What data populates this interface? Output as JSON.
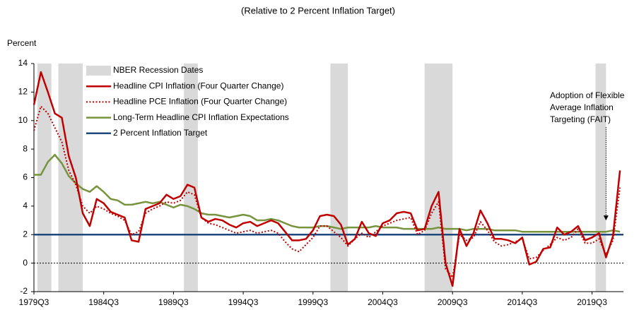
{
  "chart_data": {
    "type": "line",
    "subtitle": "(Relative to 2 Percent Inflation Target)",
    "y_label": "Percent",
    "x": [
      1979.5,
      1980.0,
      1980.5,
      1981.0,
      1981.5,
      1982.0,
      1982.5,
      1983.0,
      1983.5,
      1984.0,
      1984.5,
      1985.0,
      1985.5,
      1986.0,
      1986.5,
      1987.0,
      1987.5,
      1988.0,
      1988.5,
      1989.0,
      1989.5,
      1990.0,
      1990.5,
      1991.0,
      1991.5,
      1992.0,
      1992.5,
      1993.0,
      1993.5,
      1994.0,
      1994.5,
      1995.0,
      1995.5,
      1996.0,
      1996.5,
      1997.0,
      1997.5,
      1998.0,
      1998.5,
      1999.0,
      1999.5,
      2000.0,
      2000.5,
      2001.0,
      2001.5,
      2002.0,
      2002.5,
      2003.0,
      2003.5,
      2004.0,
      2004.5,
      2005.0,
      2005.5,
      2006.0,
      2006.5,
      2007.0,
      2007.5,
      2008.0,
      2008.5,
      2009.0,
      2009.5,
      2010.0,
      2010.5,
      2011.0,
      2011.5,
      2012.0,
      2012.5,
      2013.0,
      2013.5,
      2014.0,
      2014.5,
      2015.0,
      2015.5,
      2016.0,
      2016.5,
      2017.0,
      2017.5,
      2018.0,
      2018.5,
      2019.0,
      2019.5,
      2020.0,
      2020.5,
      2021.0,
      2021.5
    ],
    "xlim": [
      1979.5,
      2021.75
    ],
    "xticks": [
      {
        "value": 1979.5,
        "label": "1979Q3"
      },
      {
        "value": 1984.5,
        "label": "1984Q3"
      },
      {
        "value": 1989.5,
        "label": "1989Q3"
      },
      {
        "value": 1994.5,
        "label": "1994Q3"
      },
      {
        "value": 1999.5,
        "label": "1999Q3"
      },
      {
        "value": 2004.5,
        "label": "2004Q3"
      },
      {
        "value": 2009.5,
        "label": "2009Q3"
      },
      {
        "value": 2014.5,
        "label": "2014Q3"
      },
      {
        "value": 2019.5,
        "label": "2019Q3"
      }
    ],
    "ylim": [
      -2,
      14
    ],
    "yticks": [
      -2,
      0,
      2,
      4,
      6,
      8,
      10,
      12,
      14
    ],
    "legend": "upper left",
    "dotted_zero_line": true,
    "recessions": {
      "name": "NBER Recession Dates",
      "color": "#d9d9d9",
      "periods": [
        [
          1979.75,
          1980.75
        ],
        [
          1981.25,
          1983.0
        ],
        [
          1990.25,
          1991.25
        ],
        [
          2000.75,
          2002.0
        ],
        [
          2007.5,
          2009.5
        ],
        [
          2019.75,
          2020.5
        ]
      ]
    },
    "series": [
      {
        "name": "Headline CPI Inflation (Four Quarter Change)",
        "color": "#c00000",
        "style": "solid",
        "values": [
          11.1,
          13.4,
          12.0,
          10.5,
          10.2,
          7.5,
          6.0,
          3.5,
          2.6,
          4.5,
          4.2,
          3.6,
          3.4,
          3.2,
          1.6,
          1.5,
          3.8,
          4.0,
          4.2,
          4.8,
          4.5,
          4.7,
          5.5,
          5.3,
          3.2,
          2.9,
          3.1,
          3.0,
          2.7,
          2.5,
          2.8,
          2.9,
          2.6,
          2.8,
          3.0,
          2.8,
          2.2,
          1.6,
          1.6,
          1.7,
          2.3,
          3.3,
          3.4,
          3.3,
          2.7,
          1.3,
          1.7,
          2.9,
          2.1,
          1.9,
          2.8,
          3.0,
          3.5,
          3.6,
          3.5,
          2.3,
          2.4,
          4.0,
          5.0,
          0.0,
          -1.6,
          2.4,
          1.2,
          2.1,
          3.7,
          2.8,
          1.7,
          1.7,
          1.6,
          1.4,
          1.8,
          -0.1,
          0.1,
          1.0,
          1.1,
          2.5,
          2.0,
          2.2,
          2.6,
          1.6,
          1.8,
          2.1,
          0.4,
          1.9,
          6.5
        ]
      },
      {
        "name": "Headline PCE Inflation (Four Quarter Change)",
        "color": "#c00000",
        "style": "dotted",
        "values": [
          9.3,
          11.0,
          10.5,
          9.5,
          8.5,
          6.5,
          5.5,
          4.0,
          3.5,
          4.0,
          3.8,
          3.5,
          3.3,
          3.0,
          2.0,
          2.2,
          3.5,
          3.8,
          4.0,
          4.3,
          4.2,
          4.4,
          5.0,
          4.8,
          3.2,
          2.8,
          2.7,
          2.5,
          2.3,
          2.1,
          2.2,
          2.3,
          2.1,
          2.2,
          2.3,
          2.1,
          1.5,
          1.0,
          0.8,
          1.3,
          1.8,
          2.6,
          2.6,
          2.2,
          1.8,
          1.2,
          1.7,
          2.1,
          1.8,
          2.2,
          2.6,
          2.8,
          3.0,
          3.1,
          3.2,
          2.0,
          2.3,
          3.5,
          4.3,
          -0.4,
          -1.0,
          2.0,
          1.6,
          1.8,
          2.9,
          2.3,
          1.5,
          1.2,
          1.3,
          1.5,
          1.7,
          0.3,
          0.4,
          0.9,
          1.3,
          1.8,
          1.6,
          1.8,
          2.4,
          1.4,
          1.4,
          1.7,
          0.6,
          1.6,
          5.3
        ]
      },
      {
        "name": "Long-Term Headline CPI Inflation Expectations",
        "color": "#77933c",
        "style": "solid",
        "values": [
          6.2,
          6.2,
          7.1,
          7.6,
          7.0,
          6.1,
          5.6,
          5.2,
          5.0,
          5.4,
          5.0,
          4.5,
          4.4,
          4.1,
          4.1,
          4.2,
          4.3,
          4.2,
          4.3,
          4.1,
          3.9,
          4.1,
          4.0,
          3.8,
          3.5,
          3.4,
          3.4,
          3.3,
          3.2,
          3.3,
          3.4,
          3.3,
          3.0,
          3.0,
          3.1,
          3.0,
          2.8,
          2.6,
          2.5,
          2.5,
          2.5,
          2.6,
          2.6,
          2.5,
          2.4,
          2.5,
          2.5,
          2.5,
          2.5,
          2.6,
          2.5,
          2.5,
          2.5,
          2.4,
          2.4,
          2.4,
          2.4,
          2.4,
          2.5,
          2.4,
          2.4,
          2.4,
          2.3,
          2.4,
          2.4,
          2.4,
          2.3,
          2.3,
          2.3,
          2.3,
          2.2,
          2.2,
          2.2,
          2.2,
          2.2,
          2.2,
          2.2,
          2.2,
          2.2,
          2.2,
          2.2,
          2.2,
          2.2,
          2.3,
          2.2
        ]
      }
    ],
    "reference_line": {
      "name": "2 Percent Inflation Target",
      "color": "#1f497d",
      "value": 2
    },
    "annotation": {
      "lines": [
        "Adoption of Flexible",
        "Average Inflation",
        "Targeting (FAIT)"
      ],
      "x": 2020.5,
      "y": 3
    }
  }
}
